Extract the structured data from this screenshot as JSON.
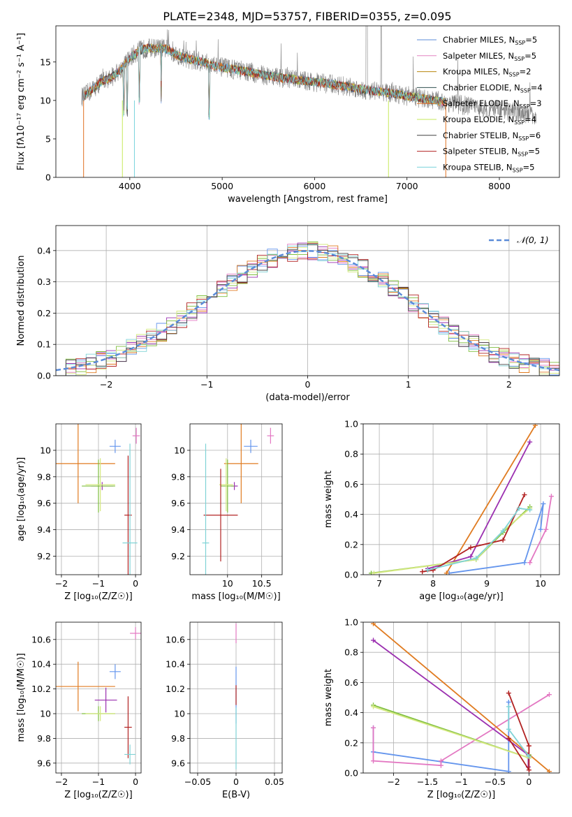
{
  "figure": {
    "title": "PLATE=2348, MJD=53757, FIBERID=0355, z=0.095"
  },
  "colors": {
    "model_colors": [
      "#5b8bd8",
      "#e483c2",
      "#b8860b",
      "#2f4f4f",
      "#e07020",
      "#c6e85a",
      "#404040",
      "#b22222",
      "#79d3dc"
    ],
    "series_colors_8": [
      "#6495ed",
      "#e377c2",
      "#e07b20",
      "#9b30b0",
      "#7fbf3f",
      "#d4e880",
      "#b22222",
      "#7fd3d6"
    ]
  },
  "chart_data": [
    {
      "id": "spectrum",
      "type": "line",
      "xlabel": "wavelength [Angstrom, rest frame]",
      "ylabel": "Flux [fλ10⁻¹⁷ erg cm⁻² s⁻¹ A⁻¹]",
      "xlim": [
        3200,
        8650
      ],
      "ylim": [
        0,
        19.7
      ],
      "xticks": [
        4000,
        5000,
        6000,
        7000,
        8000
      ],
      "yticks": [
        0,
        5,
        10,
        15
      ],
      "legend_position": "upper-right",
      "legend": [
        {
          "label": "Chabrier MILES, N",
          "sub": "SSP",
          "suffix": "=5"
        },
        {
          "label": "Salpeter MILES, N",
          "sub": "SSP",
          "suffix": "=5"
        },
        {
          "label": "Kroupa MILES, N",
          "sub": "SSP",
          "suffix": "=2"
        },
        {
          "label": "Chabrier ELODIE, N",
          "sub": "SSP",
          "suffix": "=4"
        },
        {
          "label": "Salpeter ELODIE, N",
          "sub": "SSP",
          "suffix": "=3"
        },
        {
          "label": "Kroupa ELODIE, N",
          "sub": "SSP",
          "suffix": "=4"
        },
        {
          "label": "Chabrier STELIB, N",
          "sub": "SSP",
          "suffix": "=6"
        },
        {
          "label": "Salpeter STELIB, N",
          "sub": "SSP",
          "suffix": "=5"
        },
        {
          "label": "Kroupa STELIB, N",
          "sub": "SSP",
          "suffix": "=5"
        }
      ],
      "continuum": {
        "x": [
          3500,
          3600,
          3700,
          3800,
          3900,
          4000,
          4100,
          4200,
          4300,
          4400,
          4500,
          4600,
          4700,
          4800,
          4900,
          5000,
          5200,
          5400,
          5600,
          5800,
          6000,
          6200,
          6400,
          6600,
          6800,
          7000,
          7200,
          7400,
          7600,
          7800,
          8000,
          8200,
          8400
        ],
        "y": [
          10.5,
          11.5,
          12.5,
          13.0,
          14.0,
          15.5,
          16.5,
          16.8,
          16.8,
          16.7,
          16.0,
          15.5,
          15.2,
          15.0,
          14.5,
          14.3,
          13.9,
          13.4,
          13.0,
          12.7,
          12.4,
          12.1,
          11.7,
          11.3,
          11.0,
          10.6,
          10.2,
          9.8,
          9.4,
          9.0,
          8.7,
          8.4,
          8.1
        ]
      },
      "model_range": [
        3500,
        7420
      ],
      "data_range": [
        3480,
        8400
      ]
    },
    {
      "id": "residuals",
      "type": "step",
      "xlabel": "(data-model)/error",
      "ylabel": "Normed distribution",
      "xlim": [
        -2.5,
        2.5
      ],
      "ylim": [
        0,
        0.48
      ],
      "xticks": [
        -2,
        -1,
        0,
        1,
        2
      ],
      "yticks": [
        0.0,
        0.1,
        0.2,
        0.3,
        0.4
      ],
      "grid": true,
      "legend_position": "upper-right",
      "reference": {
        "label": "𝒩(0, 1)",
        "mean": 0,
        "sigma": 1
      },
      "bin_width": 0.1
    },
    {
      "id": "z-age",
      "type": "errorbar",
      "xlabel": "Z [log₁₀(Z/Z☉)]",
      "ylabel": "age  [log₁₀(age/yr)]",
      "xlim": [
        -2.15,
        0.15
      ],
      "ylim": [
        9.06,
        10.2
      ],
      "xticks": [
        -2,
        -1,
        0
      ],
      "yticks": [
        9.2,
        9.4,
        9.6,
        9.8,
        10.0
      ],
      "grid": true,
      "points": [
        {
          "x": -0.55,
          "y": 10.03,
          "xe": 0.15,
          "ye": 0.05,
          "c": 0
        },
        {
          "x": 0.02,
          "y": 10.11,
          "xe": 0.1,
          "ye": 0.06,
          "c": 1
        },
        {
          "x": -1.55,
          "y": 9.9,
          "xe": 1.0,
          "ye": 0.3,
          "c": 2
        },
        {
          "x": -0.9,
          "y": 9.73,
          "xe": 0.3,
          "ye": 0.03,
          "c": 3
        },
        {
          "x": -1.0,
          "y": 9.73,
          "xe": 0.45,
          "ye": 0.2,
          "c": 4
        },
        {
          "x": -0.95,
          "y": 9.74,
          "xe": 0.4,
          "ye": 0.2,
          "c": 5
        },
        {
          "x": -0.2,
          "y": 9.51,
          "xe": 0.1,
          "ye": 0.45,
          "c": 6
        },
        {
          "x": -0.15,
          "y": 9.3,
          "xe": 0.2,
          "ye": 0.75,
          "c": 7
        }
      ]
    },
    {
      "id": "mass-age",
      "type": "errorbar",
      "xlabel": "mass [log₁₀(M/M☉)]",
      "ylabel": "",
      "xlim": [
        9.45,
        10.8
      ],
      "ylim": [
        9.06,
        10.2
      ],
      "xticks": [
        10.0,
        10.5
      ],
      "yticks": [
        9.2,
        9.4,
        9.6,
        9.8,
        10.0
      ],
      "grid": true,
      "points": [
        {
          "x": 10.34,
          "y": 10.03,
          "xe": 0.1,
          "ye": 0.05,
          "c": 0
        },
        {
          "x": 10.63,
          "y": 10.11,
          "xe": 0.05,
          "ye": 0.06,
          "c": 1
        },
        {
          "x": 10.2,
          "y": 9.9,
          "xe": 0.25,
          "ye": 0.3,
          "c": 2
        },
        {
          "x": 10.1,
          "y": 9.73,
          "xe": 0.05,
          "ye": 0.03,
          "c": 3
        },
        {
          "x": 10.0,
          "y": 9.73,
          "xe": 0.1,
          "ye": 0.2,
          "c": 4
        },
        {
          "x": 9.98,
          "y": 9.74,
          "xe": 0.1,
          "ye": 0.2,
          "c": 5
        },
        {
          "x": 9.9,
          "y": 9.51,
          "xe": 0.25,
          "ye": 0.35,
          "c": 6
        },
        {
          "x": 9.68,
          "y": 9.3,
          "xe": 0.05,
          "ye": 0.75,
          "c": 7
        }
      ]
    },
    {
      "id": "age-weight",
      "type": "line",
      "xlabel": "age  [log₁₀(age/yr)]",
      "ylabel": "mass weight",
      "xlim": [
        6.7,
        10.35
      ],
      "ylim": [
        0,
        1.0
      ],
      "xticks": [
        7,
        8,
        9,
        10
      ],
      "yticks": [
        0.0,
        0.2,
        0.4,
        0.6,
        0.8,
        1.0
      ],
      "grid": true,
      "series": [
        {
          "c": 0,
          "x": [
            8.3,
            9.7,
            10.05,
            10.0
          ],
          "y": [
            0.01,
            0.08,
            0.47,
            0.3
          ]
        },
        {
          "c": 1,
          "x": [
            9.8,
            10.1,
            10.2
          ],
          "y": [
            0.08,
            0.3,
            0.52
          ]
        },
        {
          "c": 2,
          "x": [
            8.25,
            9.9
          ],
          "y": [
            0.01,
            0.99
          ]
        },
        {
          "c": 3,
          "x": [
            7.9,
            8.7,
            9.8
          ],
          "y": [
            0.04,
            0.12,
            0.88
          ]
        },
        {
          "c": 4,
          "x": [
            6.85,
            8.8,
            9.3,
            9.8
          ],
          "y": [
            0.01,
            0.1,
            0.28,
            0.45
          ]
        },
        {
          "c": 5,
          "x": [
            6.9,
            8.8,
            9.3,
            9.8
          ],
          "y": [
            0.01,
            0.1,
            0.29,
            0.44
          ]
        },
        {
          "c": 6,
          "x": [
            7.8,
            8.0,
            8.7,
            9.3,
            9.7
          ],
          "y": [
            0.02,
            0.03,
            0.18,
            0.23,
            0.53
          ]
        },
        {
          "c": 7,
          "x": [
            7.9,
            8.8,
            9.3,
            9.6,
            9.8
          ],
          "y": [
            0.03,
            0.11,
            0.29,
            0.44,
            0.43
          ]
        }
      ]
    },
    {
      "id": "z-mass",
      "type": "errorbar",
      "xlabel": "Z [log₁₀(Z/Z☉)]",
      "ylabel": "mass [log₁₀(M/M☉)]",
      "xlim": [
        -2.15,
        0.15
      ],
      "ylim": [
        9.52,
        10.74
      ],
      "xticks": [
        -2,
        -1,
        0
      ],
      "yticks": [
        9.6,
        9.8,
        10.0,
        10.2,
        10.4,
        10.6
      ],
      "grid": true,
      "points": [
        {
          "x": -0.55,
          "y": 10.34,
          "xe": 0.15,
          "ye": 0.06,
          "c": 0
        },
        {
          "x": 0.0,
          "y": 10.65,
          "xe": 0.15,
          "ye": 0.05,
          "c": 1
        },
        {
          "x": -1.55,
          "y": 10.22,
          "xe": 1.0,
          "ye": 0.2,
          "c": 2
        },
        {
          "x": -0.8,
          "y": 10.11,
          "xe": 0.3,
          "ye": 0.1,
          "c": 3
        },
        {
          "x": -1.0,
          "y": 10.0,
          "xe": 0.45,
          "ye": 0.06,
          "c": 4
        },
        {
          "x": -0.95,
          "y": 10.0,
          "xe": 0.4,
          "ye": 0.06,
          "c": 5
        },
        {
          "x": -0.2,
          "y": 9.89,
          "xe": 0.1,
          "ye": 0.25,
          "c": 6
        },
        {
          "x": -0.15,
          "y": 9.67,
          "xe": 0.15,
          "ye": 0.08,
          "c": 7
        }
      ]
    },
    {
      "id": "ebv-mass",
      "type": "errorbar",
      "xlabel": "E(B-V)",
      "ylabel": "",
      "xlim": [
        -0.06,
        0.06
      ],
      "ylim": [
        9.52,
        10.74
      ],
      "xticks": [
        -0.05,
        0.0,
        0.05
      ],
      "yticks": [
        9.6,
        9.8,
        10.0,
        10.2,
        10.4,
        10.6
      ],
      "grid": true,
      "points": [
        {
          "x": 0.0,
          "y": 10.15,
          "xe": 0,
          "ye": 0.23,
          "c": 0
        },
        {
          "x": 0.0,
          "y": 10.65,
          "xe": 0,
          "ye": 0.08,
          "c": 1
        },
        {
          "x": 0.0,
          "y": 10.15,
          "xe": 0,
          "ye": 0.08,
          "c": 6
        },
        {
          "x": 0.0,
          "y": 9.8,
          "xe": 0,
          "ye": 0.25,
          "c": 7
        }
      ]
    },
    {
      "id": "z-weight",
      "type": "line",
      "xlabel": "Z [log₁₀(Z/Z☉)]",
      "ylabel": "mass weight",
      "xlim": [
        -2.45,
        0.45
      ],
      "ylim": [
        0,
        1.0
      ],
      "xticks": [
        -2.0,
        -1.5,
        -1.0,
        -0.5,
        0.0
      ],
      "yticks": [
        0.0,
        0.2,
        0.4,
        0.6,
        0.8,
        1.0
      ],
      "grid": true,
      "series": [
        {
          "c": 0,
          "x": [
            -2.3,
            -2.3,
            -0.3,
            -0.3
          ],
          "y": [
            0.3,
            0.14,
            0.01,
            0.47
          ]
        },
        {
          "c": 1,
          "x": [
            0.3,
            -1.3,
            -1.3,
            -2.3,
            -2.3
          ],
          "y": [
            0.52,
            0.08,
            0.05,
            0.08,
            0.3
          ]
        },
        {
          "c": 2,
          "x": [
            -2.3,
            0.3
          ],
          "y": [
            0.99,
            0.01
          ]
        },
        {
          "c": 3,
          "x": [
            -2.3,
            -0.01,
            -0.01
          ],
          "y": [
            0.88,
            0.12,
            0.04
          ]
        },
        {
          "c": 4,
          "x": [
            -2.3,
            0.0,
            0.0
          ],
          "y": [
            0.45,
            0.1,
            0.12
          ]
        },
        {
          "c": 5,
          "x": [
            -2.3,
            0.0
          ],
          "y": [
            0.44,
            0.1
          ]
        },
        {
          "c": 6,
          "x": [
            -0.3,
            0.0,
            0.0,
            -0.3
          ],
          "y": [
            0.53,
            0.18,
            0.02,
            0.23
          ]
        },
        {
          "c": 7,
          "x": [
            -0.3,
            -0.3,
            0.0
          ],
          "y": [
            0.44,
            0.29,
            0.11
          ]
        }
      ]
    }
  ]
}
